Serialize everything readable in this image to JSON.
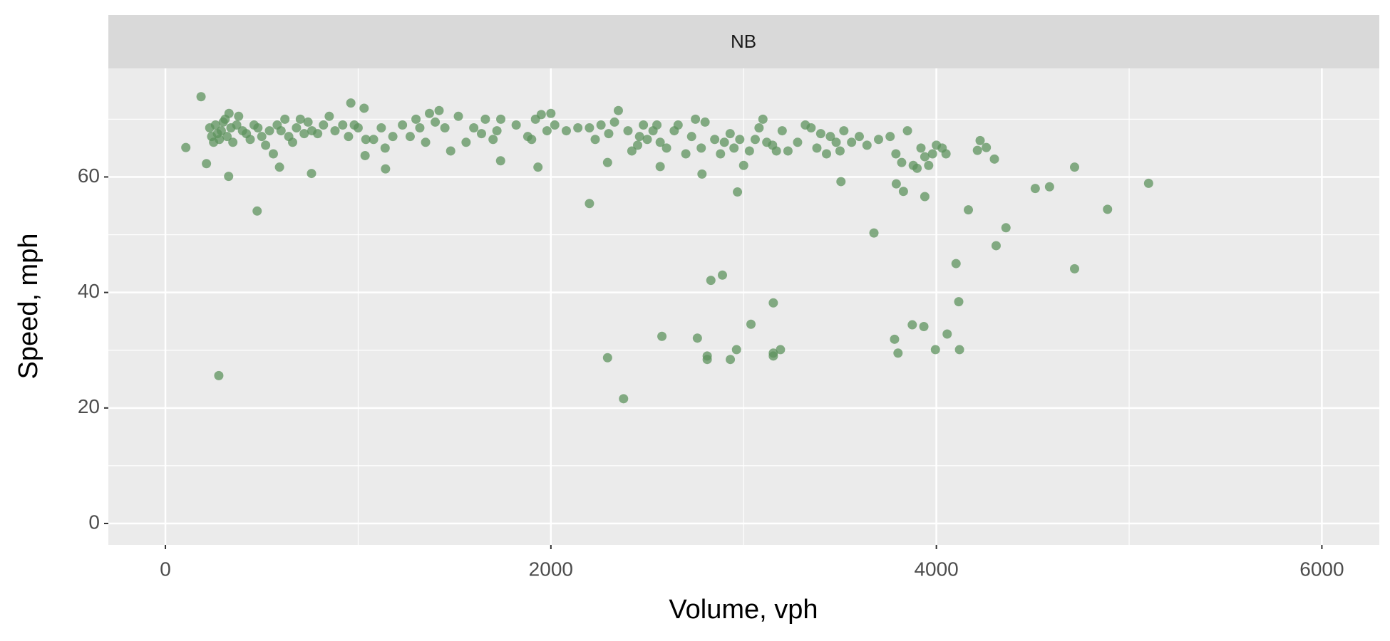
{
  "chart_data": {
    "type": "scatter",
    "facet_label": "NB",
    "xlabel": "Volume, vph",
    "ylabel": "Speed, mph",
    "color": "#5e935e",
    "xlim": [
      -296,
      6298
    ],
    "ylim": [
      -3.7,
      78.8
    ],
    "xticks": [
      0,
      2000,
      4000,
      6000
    ],
    "yticks": [
      0,
      20,
      40,
      60
    ],
    "xminor": [
      1000,
      3000,
      5000
    ],
    "yminor": [
      10,
      30,
      50,
      70
    ],
    "grid": true,
    "x": [
      230,
      240,
      250,
      260,
      270,
      280,
      290,
      300,
      310,
      320,
      330,
      340,
      350,
      370,
      380,
      400,
      420,
      440,
      460,
      480,
      500,
      520,
      540,
      560,
      580,
      600,
      620,
      640,
      660,
      680,
      700,
      720,
      740,
      760,
      790,
      820,
      850,
      880,
      920,
      950,
      980,
      1000,
      1040,
      1080,
      1120,
      1140,
      1180,
      1230,
      1270,
      1300,
      1320,
      1350,
      1370,
      1400,
      1420,
      1450,
      1480,
      1520,
      1560,
      1600,
      1640,
      1660,
      1700,
      1720,
      1740,
      1820,
      1880,
      1900,
      1920,
      1950,
      1980,
      2000,
      2020,
      2080,
      2140,
      2200,
      2230,
      2260,
      2300,
      2330,
      2350,
      2400,
      2420,
      2450,
      2460,
      2480,
      2500,
      2530,
      2550,
      2600,
      2640,
      2660,
      2700,
      2730,
      2750,
      2780,
      2800,
      2850,
      2880,
      2900,
      2930,
      2950,
      2980,
      3000,
      3030,
      3060,
      3080,
      3100,
      3120,
      3150,
      3170,
      3200,
      3230,
      3280,
      3320,
      3350,
      3380,
      3400,
      3430,
      3450,
      3480,
      3500,
      3520,
      3560,
      3600,
      3640,
      3700,
      3760,
      3790,
      3820,
      3850,
      3880,
      3900,
      3920,
      3940,
      3960,
      3980,
      4000,
      4030,
      4050,
      277,
      476,
      328,
      758,
      106,
      185,
      213,
      962,
      1031,
      1036,
      1142,
      592,
      1933,
      1739,
      2200,
      2294,
      2377,
      2294,
      2576,
      2567,
      2567,
      2760,
      2811,
      2811,
      2830,
      2890,
      2784,
      2968,
      2931,
      2963,
      3038,
      3154,
      3154,
      3154,
      3191,
      3505,
      3676,
      3792,
      3829,
      3940,
      3783,
      3801,
      3875,
      3935,
      3995,
      4056,
      4120,
      4116,
      4102,
      4166,
      4310,
      4361,
      4513,
      4587,
      4717,
      4717,
      4888,
      5101,
      4301,
      4259,
      4227,
      4213
    ],
    "values": [
      68.5,
      67,
      66,
      69,
      67.5,
      66.5,
      68,
      69.5,
      70,
      67,
      71,
      68.5,
      66,
      69,
      70.5,
      68,
      67.5,
      66.5,
      69,
      68.5,
      67,
      65.5,
      68,
      64,
      69,
      68,
      70,
      67,
      66,
      68.5,
      70,
      67.5,
      69.5,
      68,
      67.5,
      69,
      70.5,
      68,
      69,
      67,
      69,
      68.5,
      66.5,
      66.5,
      68.5,
      65,
      67,
      69,
      67,
      70,
      68.5,
      66,
      71,
      69.5,
      71.5,
      68.5,
      64.5,
      70.5,
      66,
      68.5,
      67.5,
      70,
      66.5,
      68,
      70,
      69,
      67,
      66.5,
      70,
      70.8,
      68,
      71,
      69,
      68,
      68.5,
      68.5,
      66.5,
      69,
      67.5,
      69.5,
      71.5,
      68,
      64.5,
      65.5,
      67,
      69,
      66.5,
      68,
      69,
      65,
      68,
      69,
      64,
      67,
      70,
      65,
      69.5,
      66.5,
      64,
      66,
      67.5,
      65,
      66.5,
      62,
      64.5,
      66.5,
      68.5,
      70,
      66,
      65.5,
      64.5,
      68,
      64.5,
      66,
      69,
      68.5,
      65,
      67.5,
      64,
      67,
      66,
      64.5,
      68,
      66,
      67,
      65.5,
      66.5,
      67,
      64,
      62.5,
      68,
      62,
      61.5,
      65,
      63.5,
      62,
      64,
      65.5,
      65,
      64,
      25.6,
      54.1,
      60.1,
      60.6,
      65.1,
      73.9,
      62.3,
      72.8,
      71.9,
      63.7,
      61.4,
      61.7,
      61.7,
      62.8,
      55.4,
      28.7,
      21.6,
      62.5,
      32.4,
      66,
      61.8,
      32.1,
      29,
      28.4,
      42.1,
      43,
      60.5,
      57.4,
      28.4,
      30.1,
      34.5,
      38.2,
      29.5,
      29,
      30.1,
      59.2,
      50.3,
      58.8,
      57.5,
      56.6,
      31.9,
      29.5,
      34.4,
      34.1,
      30.1,
      32.8,
      30.1,
      38.4,
      45,
      54.3,
      48.1,
      51.2,
      58,
      58.3,
      61.7,
      44.1,
      54.4,
      58.9,
      63.1,
      65.1,
      66.3,
      64.6
    ]
  }
}
